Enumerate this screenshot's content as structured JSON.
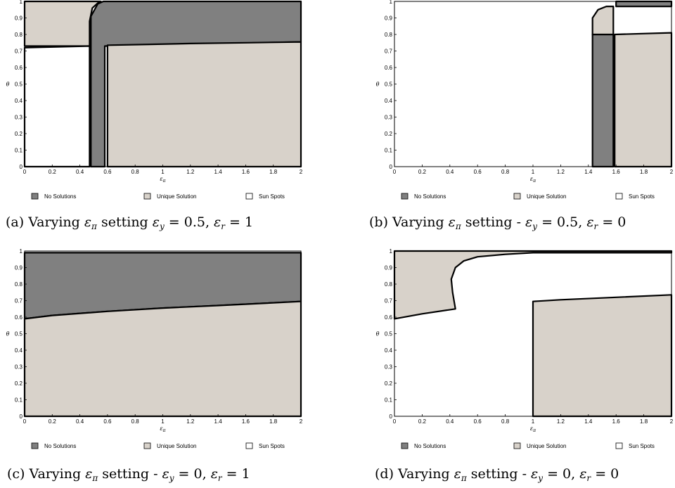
{
  "colors": {
    "no_solutions": "#808080",
    "unique_solution": "#d8d2ca",
    "sun_spots": "#ffffff",
    "boundary": "#000000"
  },
  "chart_data": [
    {
      "type": "heatmap",
      "panel": "a",
      "caption": "(a) Varying ε_π setting ε_y = 0.5, ε_r = 1",
      "caption_parts": {
        "label": "(a) Varying ",
        "var": "ε",
        "sub": "π",
        "mid": " setting ",
        "eq1": "ε",
        "eq1sub": "y",
        "eq1val": " = 0.5, ",
        "eq2": "ε",
        "eq2sub": "r",
        "eq2val": " = 1"
      },
      "xlabel": "ε_π",
      "ylabel": "θ",
      "xlim": [
        0,
        2
      ],
      "ylim": [
        0,
        1
      ],
      "xticks": [
        "0",
        "0.2",
        "0.4",
        "0.6",
        "0.8",
        "1",
        "1.2",
        "1.4",
        "1.6",
        "1.8",
        "2"
      ],
      "yticks": [
        "0",
        "0.1",
        "0.2",
        "0.3",
        "0.4",
        "0.5",
        "0.6",
        "0.7",
        "0.8",
        "0.9",
        "1"
      ],
      "legend": [
        "No Solutions",
        "Unique Solution",
        "Sun Spots"
      ],
      "regions": [
        {
          "class": "no_solutions",
          "polygon": [
            [
              0.48,
              0
            ],
            [
              0.48,
              0.91
            ],
            [
              0.53,
              0.985
            ],
            [
              0.57,
              1
            ],
            [
              2,
              1
            ],
            [
              2,
              0.755
            ],
            [
              0.58,
              0.73
            ],
            [
              0.58,
              0
            ]
          ]
        },
        {
          "class": "unique_solution",
          "polygon": [
            [
              0,
              0.73
            ],
            [
              0.47,
              0.73
            ],
            [
              0.47,
              0.88
            ],
            [
              0.49,
              0.96
            ],
            [
              0.53,
              0.99
            ],
            [
              0.55,
              1
            ],
            [
              0,
              1
            ]
          ]
        },
        {
          "class": "unique_solution",
          "polygon": [
            [
              0.6,
              0
            ],
            [
              2,
              0
            ],
            [
              2,
              0.755
            ],
            [
              1.6,
              0.75
            ],
            [
              1.2,
              0.745
            ],
            [
              0.9,
              0.74
            ],
            [
              0.6,
              0.735
            ]
          ]
        },
        {
          "class": "sun_spots",
          "polygon": [
            [
              0,
              0
            ],
            [
              0.47,
              0
            ],
            [
              0.47,
              0.73
            ],
            [
              0,
              0.72
            ]
          ]
        }
      ]
    },
    {
      "type": "heatmap",
      "panel": "b",
      "caption": "(b) Varying ε_π setting - ε_y = 0.5, ε_r = 0",
      "caption_parts": {
        "label": "(b) Varying ",
        "var": "ε",
        "sub": "π",
        "mid": " setting - ",
        "eq1": "ε",
        "eq1sub": "y",
        "eq1val": " = 0.5, ",
        "eq2": "ε",
        "eq2sub": "r",
        "eq2val": " = 0"
      },
      "xlabel": "ε_π",
      "ylabel": "θ",
      "xlim": [
        0,
        2
      ],
      "ylim": [
        0,
        1
      ],
      "xticks": [
        "0",
        "0.2",
        "0.4",
        "0.6",
        "0.8",
        "1",
        "1.2",
        "1.4",
        "1.6",
        "1.8",
        "2"
      ],
      "yticks": [
        "0",
        "0.1",
        "0.2",
        "0.3",
        "0.4",
        "0.5",
        "0.6",
        "0.7",
        "0.8",
        "0.9",
        "1"
      ],
      "legend": [
        "No Solutions",
        "Unique Solution",
        "Sun Spots"
      ],
      "regions": [
        {
          "class": "no_solutions",
          "polygon": [
            [
              1.43,
              0
            ],
            [
              1.58,
              0
            ],
            [
              1.58,
              0.8
            ],
            [
              1.43,
              0.8
            ]
          ]
        },
        {
          "class": "unique_solution",
          "polygon": [
            [
              1.59,
              0
            ],
            [
              2,
              0
            ],
            [
              2,
              0.81
            ],
            [
              1.59,
              0.8
            ]
          ]
        },
        {
          "class": "unique_solution",
          "polygon": [
            [
              1.43,
              0.8
            ],
            [
              1.43,
              0.9
            ],
            [
              1.47,
              0.95
            ],
            [
              1.53,
              0.97
            ],
            [
              1.58,
              0.97
            ],
            [
              1.58,
              0.8
            ]
          ]
        },
        {
          "class": "no_solutions",
          "polygon": [
            [
              1.6,
              0.97
            ],
            [
              2,
              0.97
            ],
            [
              2,
              1
            ],
            [
              1.6,
              1
            ]
          ]
        }
      ]
    },
    {
      "type": "heatmap",
      "panel": "c",
      "caption": "(c) Varying ε_π setting - ε_y = 0, ε_r = 1",
      "caption_parts": {
        "label": "(c) Varying ",
        "var": "ε",
        "sub": "π",
        "mid": " setting - ",
        "eq1": "ε",
        "eq1sub": "y",
        "eq1val": " = 0, ",
        "eq2": "ε",
        "eq2sub": "r",
        "eq2val": " = 1"
      },
      "xlabel": "ε_π",
      "ylabel": "θ",
      "xlim": [
        0,
        2
      ],
      "ylim": [
        0,
        1
      ],
      "xticks": [
        "0",
        "0.2",
        "0.4",
        "0.6",
        "0.8",
        "1",
        "1.2",
        "1.4",
        "1.6",
        "1.8",
        "2"
      ],
      "yticks": [
        "0",
        "0.1",
        "0.2",
        "0.3",
        "0.4",
        "0.5",
        "0.6",
        "0.7",
        "0.8",
        "0.9",
        "1"
      ],
      "legend": [
        "No Solutions",
        "Unique Solution",
        "Sun Spots"
      ],
      "regions": [
        {
          "class": "no_solutions",
          "polygon": [
            [
              0,
              0.59
            ],
            [
              0.2,
              0.61
            ],
            [
              0.6,
              0.635
            ],
            [
              1.0,
              0.655
            ],
            [
              1.4,
              0.67
            ],
            [
              2,
              0.695
            ],
            [
              2,
              0.99
            ],
            [
              0,
              0.99
            ]
          ]
        },
        {
          "class": "unique_solution",
          "polygon": [
            [
              0,
              0
            ],
            [
              2,
              0
            ],
            [
              2,
              0.695
            ],
            [
              1.4,
              0.67
            ],
            [
              1.0,
              0.655
            ],
            [
              0.6,
              0.635
            ],
            [
              0.2,
              0.61
            ],
            [
              0,
              0.59
            ]
          ]
        }
      ]
    },
    {
      "type": "heatmap",
      "panel": "d",
      "caption": "(d) Varying ε_π setting - ε_y = 0, ε_r = 0",
      "caption_parts": {
        "label": "(d) Varying ",
        "var": "ε",
        "sub": "π",
        "mid": " setting - ",
        "eq1": "ε",
        "eq1sub": "y",
        "eq1val": " = 0, ",
        "eq2": "ε",
        "eq2sub": "r",
        "eq2val": " = 0"
      },
      "xlabel": "ε_π",
      "ylabel": "θ",
      "xlim": [
        0,
        2
      ],
      "ylim": [
        0,
        1
      ],
      "xticks": [
        "0",
        "0.2",
        "0.4",
        "0.6",
        "0.8",
        "1",
        "1.2",
        "1.4",
        "1.6",
        "1.8",
        "2"
      ],
      "yticks": [
        "0",
        "0.1",
        "0.2",
        "0.3",
        "0.4",
        "0.5",
        "0.6",
        "0.7",
        "0.8",
        "0.9",
        "1"
      ],
      "legend": [
        "No Solutions",
        "Unique Solution",
        "Sun Spots"
      ],
      "regions": [
        {
          "class": "unique_solution",
          "polygon": [
            [
              0,
              0.59
            ],
            [
              0.2,
              0.62
            ],
            [
              0.44,
              0.65
            ],
            [
              0.42,
              0.75
            ],
            [
              0.41,
              0.83
            ],
            [
              0.44,
              0.9
            ],
            [
              0.5,
              0.94
            ],
            [
              0.6,
              0.965
            ],
            [
              0.8,
              0.98
            ],
            [
              1.0,
              0.99
            ],
            [
              2,
              0.99
            ],
            [
              2,
              1
            ],
            [
              0,
              1
            ]
          ]
        },
        {
          "class": "unique_solution",
          "polygon": [
            [
              1.0,
              0
            ],
            [
              2,
              0
            ],
            [
              2,
              0.735
            ],
            [
              1.6,
              0.72
            ],
            [
              1.2,
              0.705
            ],
            [
              1.0,
              0.695
            ]
          ]
        }
      ]
    }
  ]
}
